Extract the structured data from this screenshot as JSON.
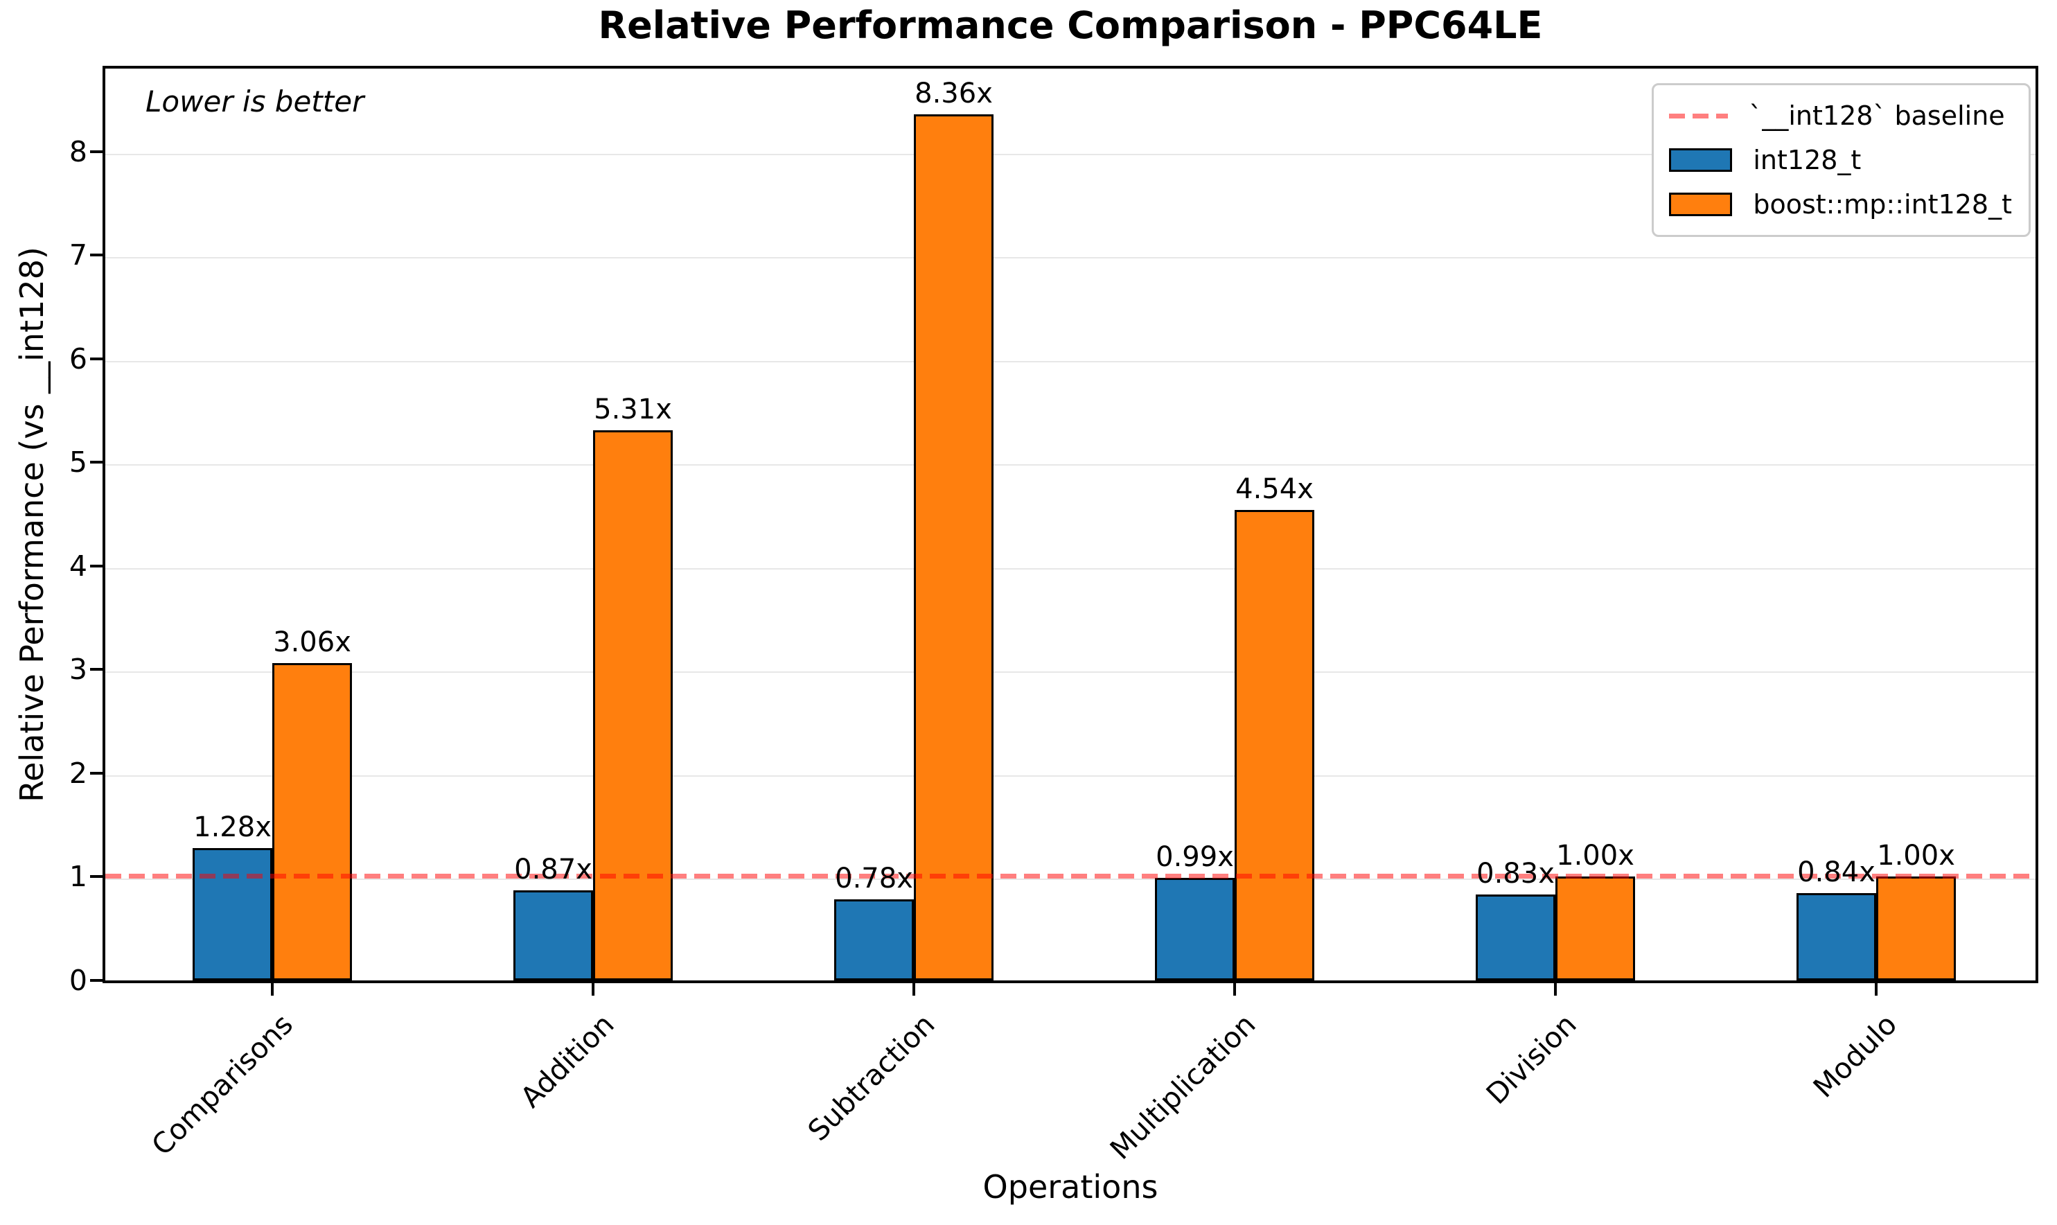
{
  "chart_data": {
    "type": "bar",
    "title": "Relative Performance Comparison - PPC64LE",
    "xlabel": "Operations",
    "ylabel": "Relative Performance (vs __int128)",
    "note": "Lower is better",
    "categories": [
      "Comparisons",
      "Addition",
      "Subtraction",
      "Multiplication",
      "Division",
      "Modulo"
    ],
    "series": [
      {
        "name": "int128_t",
        "color": "#1f77b4",
        "values": [
          1.28,
          0.87,
          0.78,
          0.99,
          0.83,
          0.84
        ],
        "labels": [
          "1.28x",
          "0.87x",
          "0.78x",
          "0.99x",
          "0.83x",
          "0.84x"
        ]
      },
      {
        "name": "boost::mp::int128_t",
        "color": "#ff7f0e",
        "values": [
          3.06,
          5.31,
          8.36,
          4.54,
          1.0,
          1.0
        ],
        "labels": [
          "3.06x",
          "5.31x",
          "8.36x",
          "4.54x",
          "1.00x",
          "1.00x"
        ]
      }
    ],
    "baseline": {
      "value": 1.0,
      "label": "`__int128` baseline",
      "color": "#ff0000",
      "alpha": 0.5
    },
    "yticks": [
      0,
      1,
      2,
      3,
      4,
      5,
      6,
      7,
      8
    ],
    "ylim": [
      0,
      8.8
    ],
    "grid": true,
    "legend_position": "upper right",
    "bar_edge_color": "#000000",
    "grid_color": "#e7e7e7"
  }
}
